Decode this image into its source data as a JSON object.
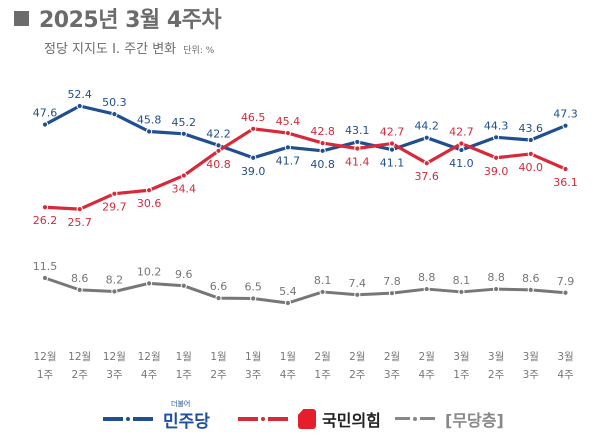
{
  "header": {
    "title": "2025년 3월 4주차",
    "subtitle": "정당 지지도 Ⅰ. 주간 변화",
    "unit": "단위: %"
  },
  "colors": {
    "democratic": "#1f4f8f",
    "ppp": "#d62a3a",
    "independent": "#777777",
    "title": "#6b6b6b"
  },
  "chart_data": {
    "type": "line",
    "title": "정당 지지도 Ⅰ. 주간 변화",
    "xlabel": "",
    "ylabel": "단위: %",
    "grid": false,
    "legend_position": "bottom",
    "categories": [
      [
        "12월",
        "1주"
      ],
      [
        "12월",
        "2주"
      ],
      [
        "12월",
        "3주"
      ],
      [
        "12월",
        "4주"
      ],
      [
        "1월",
        "1주"
      ],
      [
        "1월",
        "2주"
      ],
      [
        "1월",
        "3주"
      ],
      [
        "1월",
        "4주"
      ],
      [
        "2월",
        "1주"
      ],
      [
        "2월",
        "2주"
      ],
      [
        "2월",
        "3주"
      ],
      [
        "2월",
        "4주"
      ],
      [
        "3월",
        "1주"
      ],
      [
        "3월",
        "2주"
      ],
      [
        "3월",
        "3주"
      ],
      [
        "3월",
        "4주"
      ]
    ],
    "series": [
      {
        "name": "민주당",
        "key": "democratic",
        "values": [
          47.6,
          52.4,
          50.3,
          45.8,
          45.2,
          42.2,
          39.0,
          41.7,
          40.8,
          43.1,
          41.1,
          44.2,
          41.0,
          44.3,
          43.6,
          47.3
        ],
        "label_pos": [
          "above",
          "above",
          "above",
          "above",
          "above",
          "above",
          "below",
          "below",
          "below",
          "above",
          "below",
          "above",
          "below",
          "above",
          "above",
          "above"
        ]
      },
      {
        "name": "국민의힘",
        "key": "ppp",
        "values": [
          26.2,
          25.7,
          29.7,
          30.6,
          34.4,
          40.8,
          46.5,
          45.4,
          42.8,
          41.4,
          42.7,
          37.6,
          42.7,
          39.0,
          40.0,
          36.1
        ],
        "label_pos": [
          "below",
          "below",
          "below",
          "below",
          "below",
          "below",
          "above",
          "above",
          "above",
          "below",
          "above",
          "below",
          "above",
          "below",
          "below",
          "below"
        ]
      },
      {
        "name": "[무당층]",
        "key": "independent",
        "values": [
          11.5,
          8.6,
          8.2,
          10.2,
          9.6,
          6.6,
          6.5,
          5.4,
          8.1,
          7.4,
          7.8,
          8.8,
          8.1,
          8.8,
          8.6,
          7.9
        ],
        "label_pos": [
          "above",
          "above",
          "above",
          "above",
          "above",
          "above",
          "above",
          "above",
          "above",
          "above",
          "above",
          "above",
          "above",
          "above",
          "above",
          "above"
        ]
      }
    ]
  },
  "legend": {
    "democratic": {
      "label": "민주당",
      "logo_small": "더불어"
    },
    "ppp": {
      "label": "국민의힘"
    },
    "independent": {
      "label": "[무당층]"
    }
  }
}
